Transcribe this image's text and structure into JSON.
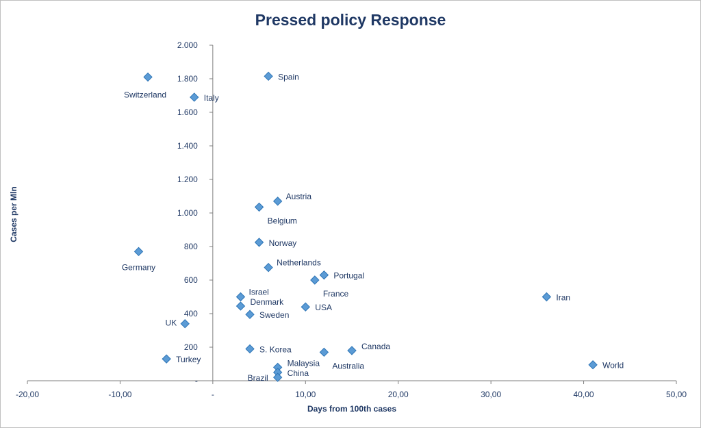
{
  "chart_data": {
    "type": "scatter",
    "title": "Pressed policy Response",
    "xlabel": "Days from 100th cases",
    "ylabel": "Cases per Mln",
    "xlim": [
      -20,
      50
    ],
    "ylim": [
      0,
      2000
    ],
    "x_ticks": [
      "-20,00",
      "-10,00",
      "-",
      "10,00",
      "20,00",
      "30,00",
      "40,00",
      "50,00"
    ],
    "y_ticks": [
      "-",
      "200",
      "400",
      "600",
      "800",
      "1.000",
      "1.200",
      "1.400",
      "1.600",
      "1.800",
      "2.000"
    ],
    "marker_color": "#5b9bd5",
    "points": [
      {
        "label": "Switzerland",
        "x": -7,
        "y": 1810,
        "pos": "below-left"
      },
      {
        "label": "Italy",
        "x": -2,
        "y": 1690,
        "pos": "right"
      },
      {
        "label": "Spain",
        "x": 6,
        "y": 1815,
        "pos": "right"
      },
      {
        "label": "Austria",
        "x": 7,
        "y": 1070,
        "pos": "above-right"
      },
      {
        "label": "Belgium",
        "x": 5,
        "y": 1035,
        "pos": "below-right"
      },
      {
        "label": "Norway",
        "x": 5,
        "y": 825,
        "pos": "right"
      },
      {
        "label": "Germany",
        "x": -8,
        "y": 770,
        "pos": "below"
      },
      {
        "label": "Netherlands",
        "x": 6,
        "y": 675,
        "pos": "above-right"
      },
      {
        "label": "Portugal",
        "x": 12,
        "y": 630,
        "pos": "right"
      },
      {
        "label": "France",
        "x": 11,
        "y": 600,
        "pos": "below-right"
      },
      {
        "label": "Israel",
        "x": 3,
        "y": 500,
        "pos": "above-right"
      },
      {
        "label": "Iran",
        "x": 36,
        "y": 500,
        "pos": "right"
      },
      {
        "label": "Denmark",
        "x": 3,
        "y": 445,
        "pos": "right-up"
      },
      {
        "label": "USA",
        "x": 10,
        "y": 440,
        "pos": "right"
      },
      {
        "label": "Sweden",
        "x": 4,
        "y": 395,
        "pos": "right"
      },
      {
        "label": "UK",
        "x": -3,
        "y": 340,
        "pos": "left"
      },
      {
        "label": "S. Korea",
        "x": 4,
        "y": 190,
        "pos": "right"
      },
      {
        "label": "Canada",
        "x": 15,
        "y": 180,
        "pos": "right-up"
      },
      {
        "label": "Australia",
        "x": 12,
        "y": 170,
        "pos": "below-right"
      },
      {
        "label": "Turkey",
        "x": -5,
        "y": 130,
        "pos": "right"
      },
      {
        "label": "World",
        "x": 41,
        "y": 95,
        "pos": "right"
      },
      {
        "label": "Malaysia",
        "x": 7,
        "y": 80,
        "pos": "right-up"
      },
      {
        "label": "China",
        "x": 7,
        "y": 50,
        "pos": "right"
      },
      {
        "label": "Brazil",
        "x": 7,
        "y": 20,
        "pos": "left-down"
      }
    ]
  }
}
